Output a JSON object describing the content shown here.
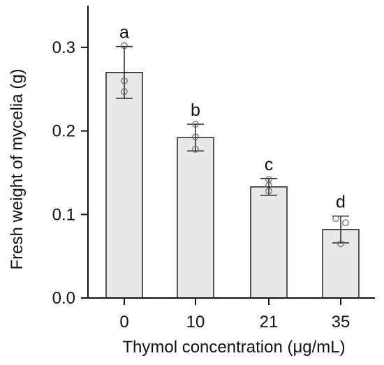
{
  "chart_data": {
    "type": "bar",
    "categories": [
      "0",
      "10",
      "21",
      "35"
    ],
    "values": [
      0.27,
      0.192,
      0.133,
      0.082
    ],
    "errors": [
      0.031,
      0.016,
      0.01,
      0.016
    ],
    "replicates": [
      [
        0.302,
        0.26,
        0.247
      ],
      [
        0.208,
        0.193,
        0.178
      ],
      [
        0.142,
        0.135,
        0.128
      ],
      [
        0.095,
        0.09,
        0.065
      ]
    ],
    "significance_letters": [
      "a",
      "b",
      "c",
      "d"
    ],
    "title": "",
    "xlabel": "Thymol concentration  (μg/mL)",
    "ylabel": "Fresh weight of mycelia  (g)",
    "ylim": [
      0,
      0.35
    ],
    "yticks": [
      "0.0",
      "0.1",
      "0.2",
      "0.3"
    ],
    "ytick_values": [
      0,
      0.1,
      0.2,
      0.3
    ],
    "grid": false,
    "legend": "none",
    "colors": {
      "bar_fill": "#e8e8e8",
      "bar_stroke": "#222222",
      "point_stroke": "#666666"
    }
  }
}
